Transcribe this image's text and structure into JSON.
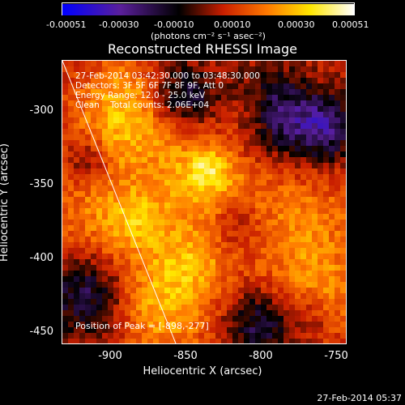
{
  "colorbar": {
    "ticks": [
      "-0.00051",
      "-0.00030",
      "-0.00010",
      "0.00010",
      "0.00030",
      "0.00051"
    ],
    "units": "(photons cm⁻² s⁻¹ asec⁻²)"
  },
  "chart_data": {
    "type": "heatmap",
    "title": "Reconstructed RHESSI Image",
    "xlabel": "Heliocentric X (arcsec)",
    "ylabel": "Heliocentric Y (arcsec)",
    "xticks": [
      "-900",
      "-850",
      "-800",
      "-750"
    ],
    "yticks": [
      "-300",
      "-350",
      "-400",
      "-450"
    ],
    "xlim": [
      -935,
      -740
    ],
    "ylim": [
      -457,
      -270
    ],
    "colorscale": [
      "#0000ff",
      "#5a1f9a",
      "#000000",
      "#c81e00",
      "#ff7800",
      "#ffe600",
      "#ffffff"
    ],
    "value_range": [
      -0.00051,
      0.00051
    ],
    "peak": [
      -898,
      -277
    ]
  },
  "info": {
    "time": "27-Feb-2014 03:42:30.000 to 03:48:30.000",
    "detectors": "Detectors: 3F 5F 6F 7F 8F 9F, Att 0",
    "energy": "Energy Range: 12.0 - 25.0 keV",
    "clean": "Clean    Total counts: 2.06E+04",
    "peak": "Position of Peak = [-898,-277]"
  },
  "footer": "27-Feb-2014 05:37"
}
